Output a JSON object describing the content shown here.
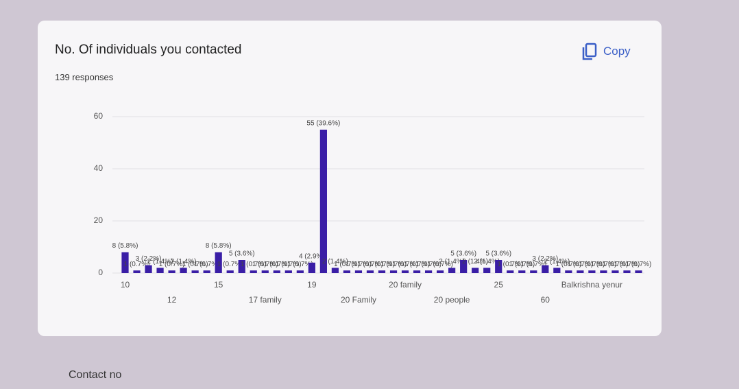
{
  "copy_button": "Copy",
  "next_question": "Contact no",
  "chart_data": {
    "type": "bar",
    "title": "No. Of individuals you contacted",
    "subtitle": "139 responses",
    "categories": [
      "10",
      null,
      null,
      null,
      "12",
      null,
      null,
      null,
      "15",
      null,
      null,
      null,
      "17 family",
      null,
      null,
      null,
      "19",
      null,
      null,
      null,
      "20 Family",
      null,
      null,
      null,
      "20 family",
      null,
      null,
      null,
      "20 people",
      null,
      null,
      null,
      "25",
      null,
      null,
      null,
      "60",
      null,
      null,
      null,
      "Balkrishna yenur",
      null,
      null,
      null,
      null
    ],
    "values": [
      8,
      1,
      3,
      2,
      1,
      2,
      1,
      1,
      8,
      1,
      5,
      1,
      1,
      1,
      1,
      1,
      4,
      55,
      2,
      1,
      1,
      1,
      1,
      1,
      1,
      1,
      1,
      1,
      2,
      5,
      2,
      2,
      5,
      1,
      1,
      1,
      3,
      2,
      1,
      1,
      1,
      1,
      1,
      1,
      1
    ],
    "value_labels": [
      "8 (5.8%)",
      "1 (0.7%)",
      "3 (2.2%)",
      "2 (1.4%)",
      "1 (0.7%)",
      "2 (1.4%)",
      "1 (0.7%)",
      "1 (0.7%)",
      "8 (5.8%)",
      "1 (0.7%)",
      "5 (3.6%)",
      "1 (0.7%)",
      "1 (0.7%)",
      "1 (0.7%)",
      "1 (0.7%)",
      "1 (0.7%)",
      "4 (2.9%)",
      "55 (39.6%)",
      "2 (1.4%)",
      "1 (0.7%)",
      "1 (0.7%)",
      "1 (0.7%)",
      "1 (0.7%)",
      "1 (0.7%)",
      "1 (0.7%)",
      "1 (0.7%)",
      "1 (0.7%)",
      "1 (0.7%)",
      "2 (1.4%)",
      "5 (3.6%)",
      "2 (1.4%)",
      "2 (1.4%)",
      "5 (3.6%)",
      "1 (0.7%)",
      "1 (0.7%)",
      "1 (0.7%)",
      "3 (2.2%)",
      "2 (1.4%)",
      "1 (0.7%)",
      "1 (0.7%)",
      "1 (0.7%)",
      "1 (0.7%)",
      "1 (0.7%)",
      "1 (0.7%)",
      "1 (0.7%)"
    ],
    "color": "#3a1ea6",
    "ylim": [
      0,
      60
    ],
    "yticks": [
      0,
      20,
      40,
      60
    ],
    "grid": true
  }
}
